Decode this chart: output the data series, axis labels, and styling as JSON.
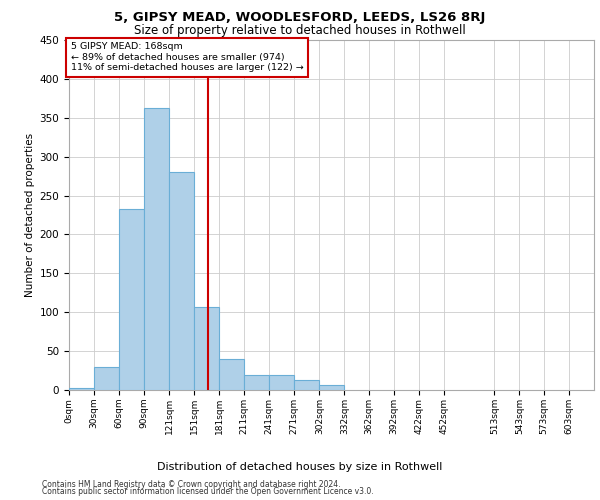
{
  "title1": "5, GIPSY MEAD, WOODLESFORD, LEEDS, LS26 8RJ",
  "title2": "Size of property relative to detached houses in Rothwell",
  "xlabel": "Distribution of detached houses by size in Rothwell",
  "ylabel": "Number of detached properties",
  "footer1": "Contains HM Land Registry data © Crown copyright and database right 2024.",
  "footer2": "Contains public sector information licensed under the Open Government Licence v3.0.",
  "annotation_line1": "5 GIPSY MEAD: 168sqm",
  "annotation_line2": "← 89% of detached houses are smaller (974)",
  "annotation_line3": "11% of semi-detached houses are larger (122) →",
  "property_size": 168,
  "bin_edges": [
    0,
    30,
    60,
    90,
    121,
    151,
    181,
    211,
    241,
    271,
    302,
    332,
    362,
    392,
    422,
    452,
    513,
    543,
    573,
    603,
    633
  ],
  "bar_values": [
    2,
    30,
    233,
    362,
    280,
    107,
    40,
    19,
    19,
    13,
    6,
    0,
    0,
    0,
    0,
    0,
    0,
    0,
    0,
    0
  ],
  "xlabels": [
    "0sqm",
    "30sqm",
    "60sqm",
    "90sqm",
    "121sqm",
    "151sqm",
    "181sqm",
    "211sqm",
    "241sqm",
    "271sqm",
    "302sqm",
    "332sqm",
    "362sqm",
    "392sqm",
    "422sqm",
    "452sqm",
    "513sqm",
    "543sqm",
    "573sqm",
    "603sqm"
  ],
  "bar_color": "#afd0e8",
  "bar_edge_color": "#6aaed6",
  "vline_color": "#cc0000",
  "grid_color": "#cccccc",
  "annotation_box_color": "#cc0000",
  "background_color": "#ffffff",
  "ylim": [
    0,
    450
  ],
  "yticks": [
    0,
    50,
    100,
    150,
    200,
    250,
    300,
    350,
    400,
    450
  ]
}
